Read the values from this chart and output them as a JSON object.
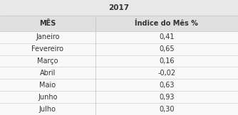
{
  "title": "2017",
  "col1_header": "MÊS",
  "col2_header": "Índice do Mês %",
  "rows": [
    [
      "Janeiro",
      "0,41"
    ],
    [
      "Fevereiro",
      "0,65"
    ],
    [
      "Março",
      "0,16"
    ],
    [
      "Abril",
      "-0,02"
    ],
    [
      "Maio",
      "0,63"
    ],
    [
      "Junho",
      "0,93"
    ],
    [
      "Julho",
      "0,30"
    ]
  ],
  "bg_color": "#f2f2f2",
  "header_bg": "#e0e0e0",
  "title_bg": "#e8e8e8",
  "data_bg": "#f9f9f9",
  "border_color": "#c8c8c8",
  "text_color": "#333333",
  "title_fontsize": 7.5,
  "header_fontsize": 7.0,
  "data_fontsize": 7.0,
  "col_split": 0.4
}
